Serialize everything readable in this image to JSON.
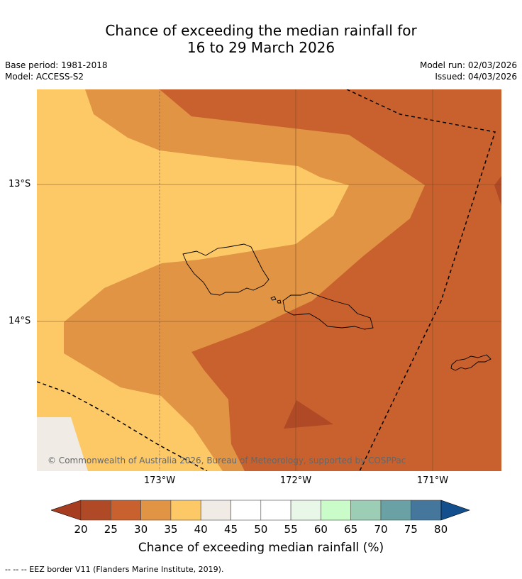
{
  "title_line1": "Chance of exceeding the median rainfall for",
  "title_line2": "16 to 29 March 2026",
  "base_period": "Base period: 1981-2018",
  "model": "Model: ACCESS-S2",
  "model_run": "Model run: 02/03/2026",
  "issued": "Issued: 04/03/2026",
  "lat_labels": [
    "13°S",
    "14°S"
  ],
  "lon_labels": [
    "173°W",
    "172°W",
    "171°W"
  ],
  "credit": "© Commonwealth of Australia 2026, Bureau of Meteorology, supported by COSPPac",
  "colorbar": {
    "ticks": [
      "20",
      "25",
      "30",
      "35",
      "40",
      "45",
      "50",
      "55",
      "60",
      "65",
      "70",
      "75",
      "80"
    ],
    "label": "Chance of exceeding median rainfall (%)",
    "colors": [
      "#a63d20",
      "#b04925",
      "#c9612e",
      "#e09444",
      "#fdc966",
      "#f0ebe4",
      "#ffffff",
      "#ffffff",
      "#e8f7e8",
      "#c9fcc9",
      "#9ccdb5",
      "#6aa1a4",
      "#44779b",
      "#134f8c"
    ]
  },
  "footnote": "--  --  -- EEZ border V11 (Flanders Marine Institute, 2019)."
}
